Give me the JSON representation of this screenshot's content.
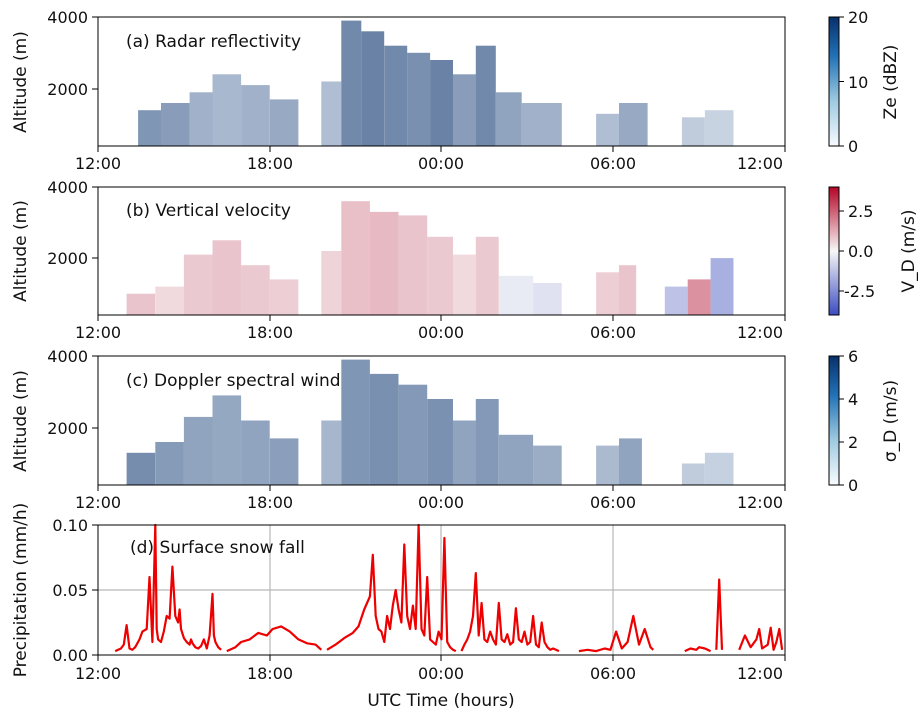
{
  "figure": {
    "x_label": "UTC Time (hours)",
    "x_ticks": [
      "12:00",
      "18:00",
      "00:00",
      "06:00",
      "12:00"
    ],
    "y_label_altitude": "Altitude (m)"
  },
  "chart_data": [
    {
      "type": "heatmap",
      "title": "(a) Radar reflectivity",
      "ylabel": "Altitude (m)",
      "xlim": [
        0,
        24
      ],
      "ylim": [
        400,
        4000
      ],
      "yticks": [
        "2000",
        "4000"
      ],
      "colorbar": {
        "label": "Ze (dBZ)",
        "ticks": [
          "0",
          "10",
          "20"
        ],
        "range": [
          0,
          20
        ],
        "colormap": "white-to-blue",
        "colors": [
          "#f7fbff",
          "#08306b"
        ]
      },
      "cells": [
        {
          "t0": 1.4,
          "t1": 2.2,
          "top": 1400,
          "v": 12
        },
        {
          "t0": 2.2,
          "t1": 3.2,
          "top": 1600,
          "v": 11
        },
        {
          "t0": 3.2,
          "t1": 4.0,
          "top": 1900,
          "v": 8
        },
        {
          "t0": 4.0,
          "t1": 5.0,
          "top": 2400,
          "v": 7
        },
        {
          "t0": 5.0,
          "t1": 6.0,
          "top": 2100,
          "v": 8
        },
        {
          "t0": 6.0,
          "t1": 7.0,
          "top": 1700,
          "v": 9
        },
        {
          "t0": 7.8,
          "t1": 8.5,
          "top": 2200,
          "v": 6
        },
        {
          "t0": 8.5,
          "t1": 9.2,
          "top": 3900,
          "v": 14
        },
        {
          "t0": 9.2,
          "t1": 10.0,
          "top": 3600,
          "v": 15
        },
        {
          "t0": 10.0,
          "t1": 10.8,
          "top": 3200,
          "v": 14
        },
        {
          "t0": 10.8,
          "t1": 11.6,
          "top": 3000,
          "v": 13
        },
        {
          "t0": 11.6,
          "t1": 12.4,
          "top": 2800,
          "v": 15
        },
        {
          "t0": 12.4,
          "t1": 13.2,
          "top": 2400,
          "v": 11
        },
        {
          "t0": 13.2,
          "t1": 13.9,
          "top": 3200,
          "v": 14
        },
        {
          "t0": 13.9,
          "t1": 14.8,
          "top": 1900,
          "v": 10
        },
        {
          "t0": 14.8,
          "t1": 16.2,
          "top": 1600,
          "v": 8
        },
        {
          "t0": 17.4,
          "t1": 18.2,
          "top": 1300,
          "v": 6
        },
        {
          "t0": 18.2,
          "t1": 19.2,
          "top": 1600,
          "v": 9
        },
        {
          "t0": 20.4,
          "t1": 21.2,
          "top": 1200,
          "v": 4
        },
        {
          "t0": 21.2,
          "t1": 22.2,
          "top": 1400,
          "v": 3
        }
      ]
    },
    {
      "type": "heatmap",
      "title": "(b) Vertical velocity",
      "ylabel": "Altitude (m)",
      "xlim": [
        0,
        24
      ],
      "ylim": [
        400,
        4000
      ],
      "yticks": [
        "2000",
        "4000"
      ],
      "colorbar": {
        "label": "V_D (m/s)",
        "ticks": [
          "2.5",
          "0.0",
          "-2.5"
        ],
        "range": [
          -4,
          4
        ],
        "colormap": "blue-white-red",
        "colors": [
          "#3b4cc0",
          "#f7f7f7",
          "#b40426"
        ]
      },
      "cells": [
        {
          "t0": 1.0,
          "t1": 2.0,
          "top": 1000,
          "v": 1.0
        },
        {
          "t0": 2.0,
          "t1": 3.0,
          "top": 1200,
          "v": 0.6
        },
        {
          "t0": 3.0,
          "t1": 4.0,
          "top": 2100,
          "v": 0.9
        },
        {
          "t0": 4.0,
          "t1": 5.0,
          "top": 2500,
          "v": 1.0
        },
        {
          "t0": 5.0,
          "t1": 6.0,
          "top": 1800,
          "v": 0.9
        },
        {
          "t0": 6.0,
          "t1": 7.0,
          "top": 1400,
          "v": 0.8
        },
        {
          "t0": 7.8,
          "t1": 8.5,
          "top": 2200,
          "v": 0.7
        },
        {
          "t0": 8.5,
          "t1": 9.5,
          "top": 3600,
          "v": 1.1
        },
        {
          "t0": 9.5,
          "t1": 10.5,
          "top": 3300,
          "v": 1.2
        },
        {
          "t0": 10.5,
          "t1": 11.5,
          "top": 3200,
          "v": 1.0
        },
        {
          "t0": 11.5,
          "t1": 12.4,
          "top": 2600,
          "v": 0.9
        },
        {
          "t0": 12.4,
          "t1": 13.2,
          "top": 2100,
          "v": 0.6
        },
        {
          "t0": 13.2,
          "t1": 14.0,
          "top": 2600,
          "v": 0.9
        },
        {
          "t0": 14.0,
          "t1": 15.2,
          "top": 1500,
          "v": -0.4
        },
        {
          "t0": 15.2,
          "t1": 16.2,
          "top": 1300,
          "v": -0.6
        },
        {
          "t0": 17.4,
          "t1": 18.2,
          "top": 1600,
          "v": 0.8
        },
        {
          "t0": 18.2,
          "t1": 18.8,
          "top": 1800,
          "v": 1.0
        },
        {
          "t0": 19.8,
          "t1": 20.6,
          "top": 1200,
          "v": -1.5
        },
        {
          "t0": 20.6,
          "t1": 21.4,
          "top": 1400,
          "v": 2.0
        },
        {
          "t0": 21.4,
          "t1": 22.2,
          "top": 2000,
          "v": -2.0
        }
      ]
    },
    {
      "type": "heatmap",
      "title": "(c) Doppler spectral wind",
      "ylabel": "Altitude (m)",
      "xlim": [
        0,
        24
      ],
      "ylim": [
        400,
        4000
      ],
      "yticks": [
        "2000",
        "4000"
      ],
      "colorbar": {
        "label": "σ_D (m/s)",
        "ticks": [
          "0",
          "2",
          "4",
          "6"
        ],
        "range": [
          0,
          6
        ],
        "colormap": "white-to-blue",
        "colors": [
          "#f7fbff",
          "#08306b"
        ]
      },
      "cells": [
        {
          "t0": 1.0,
          "t1": 2.0,
          "top": 1300,
          "v": 4.0
        },
        {
          "t0": 2.0,
          "t1": 3.0,
          "top": 1600,
          "v": 3.4
        },
        {
          "t0": 3.0,
          "t1": 4.0,
          "top": 2300,
          "v": 3.0
        },
        {
          "t0": 4.0,
          "t1": 5.0,
          "top": 2900,
          "v": 2.8
        },
        {
          "t0": 5.0,
          "t1": 6.0,
          "top": 2200,
          "v": 3.0
        },
        {
          "t0": 6.0,
          "t1": 7.0,
          "top": 1700,
          "v": 3.2
        },
        {
          "t0": 7.8,
          "t1": 8.5,
          "top": 2200,
          "v": 2.2
        },
        {
          "t0": 8.5,
          "t1": 9.5,
          "top": 3900,
          "v": 3.6
        },
        {
          "t0": 9.5,
          "t1": 10.5,
          "top": 3500,
          "v": 3.9
        },
        {
          "t0": 10.5,
          "t1": 11.5,
          "top": 3200,
          "v": 3.5
        },
        {
          "t0": 11.5,
          "t1": 12.4,
          "top": 2800,
          "v": 3.8
        },
        {
          "t0": 12.4,
          "t1": 13.2,
          "top": 2200,
          "v": 3.0
        },
        {
          "t0": 13.2,
          "t1": 14.0,
          "top": 2800,
          "v": 3.5
        },
        {
          "t0": 14.0,
          "t1": 15.2,
          "top": 1800,
          "v": 3.0
        },
        {
          "t0": 15.2,
          "t1": 16.2,
          "top": 1500,
          "v": 2.6
        },
        {
          "t0": 17.4,
          "t1": 18.2,
          "top": 1500,
          "v": 2.0
        },
        {
          "t0": 18.2,
          "t1": 19.0,
          "top": 1700,
          "v": 3.0
        },
        {
          "t0": 20.4,
          "t1": 21.2,
          "top": 1000,
          "v": 1.2
        },
        {
          "t0": 21.2,
          "t1": 22.2,
          "top": 1300,
          "v": 1.0
        }
      ]
    },
    {
      "type": "line",
      "title": "(d) Surface snow fall",
      "xlabel": "UTC Time (hours)",
      "ylabel": "Precipitation (mm/h)",
      "xlim": [
        0,
        24
      ],
      "ylim": [
        0,
        0.1
      ],
      "yticks": [
        "0.00",
        "0.05",
        "0.10"
      ],
      "grid": true,
      "color": "#ee0000",
      "series": [
        {
          "segments": [
            {
              "x": [
                0.6,
                0.8,
                0.9,
                1.0,
                1.1,
                1.2,
                1.3,
                1.45,
                1.55,
                1.7,
                1.8,
                1.9,
                2.0,
                2.05,
                2.1,
                2.2,
                2.3,
                2.4,
                2.5,
                2.6,
                2.7,
                2.8,
                2.85,
                2.9,
                3.0,
                3.1,
                3.2,
                3.25,
                3.3,
                3.4,
                3.5,
                3.6,
                3.7,
                3.8,
                3.9,
                4.0,
                4.05,
                4.1,
                4.2,
                4.3
              ],
              "y": [
                0.003,
                0.005,
                0.008,
                0.023,
                0.005,
                0.004,
                0.006,
                0.012,
                0.018,
                0.02,
                0.06,
                0.01,
                0.15,
                0.02,
                0.012,
                0.01,
                0.018,
                0.03,
                0.028,
                0.068,
                0.03,
                0.025,
                0.035,
                0.02,
                0.013,
                0.01,
                0.008,
                0.012,
                0.009,
                0.006,
                0.005,
                0.007,
                0.012,
                0.005,
                0.015,
                0.047,
                0.015,
                0.01,
                0.006,
                0.004
              ]
            },
            {
              "x": [
                4.5,
                4.8,
                5.0,
                5.3,
                5.6,
                5.9,
                6.1,
                6.4,
                6.7,
                7.0,
                7.3,
                7.6,
                7.8
              ],
              "y": [
                0.003,
                0.006,
                0.01,
                0.012,
                0.017,
                0.015,
                0.02,
                0.022,
                0.018,
                0.012,
                0.009,
                0.008,
                0.004
              ]
            },
            {
              "x": [
                8.0,
                8.3,
                8.6,
                8.9,
                9.1,
                9.3,
                9.5,
                9.6,
                9.7,
                9.8,
                9.9,
                10.0,
                10.1,
                10.2,
                10.3,
                10.4,
                10.5,
                10.6,
                10.7,
                10.8,
                10.9,
                11.0,
                11.1,
                11.2,
                11.3,
                11.4,
                11.5,
                11.6,
                11.7,
                11.8,
                11.9,
                12.0,
                12.1,
                12.2,
                12.3,
                12.4,
                12.5
              ],
              "y": [
                0.004,
                0.008,
                0.013,
                0.017,
                0.022,
                0.035,
                0.045,
                0.077,
                0.03,
                0.02,
                0.018,
                0.01,
                0.03,
                0.02,
                0.038,
                0.05,
                0.035,
                0.025,
                0.085,
                0.03,
                0.02,
                0.038,
                0.02,
                0.1,
                0.02,
                0.015,
                0.06,
                0.012,
                0.01,
                0.008,
                0.018,
                0.012,
                0.09,
                0.01,
                0.006,
                0.004,
                0.003
              ]
            },
            {
              "x": [
                12.7,
                12.8,
                12.9,
                13.0,
                13.1,
                13.2,
                13.3,
                13.4,
                13.5,
                13.6,
                13.7,
                13.8,
                13.9,
                14.0,
                14.1,
                14.2,
                14.3,
                14.4,
                14.5,
                14.6,
                14.7,
                14.8,
                14.9,
                15.0,
                15.1,
                15.2,
                15.3,
                15.4,
                15.5,
                15.6,
                15.7,
                15.8,
                15.9,
                16.0,
                16.1
              ],
              "y": [
                0.003,
                0.008,
                0.012,
                0.018,
                0.03,
                0.063,
                0.015,
                0.04,
                0.012,
                0.01,
                0.018,
                0.012,
                0.008,
                0.04,
                0.012,
                0.01,
                0.016,
                0.008,
                0.01,
                0.036,
                0.012,
                0.01,
                0.018,
                0.008,
                0.01,
                0.03,
                0.008,
                0.006,
                0.025,
                0.01,
                0.006,
                0.004,
                0.005,
                0.004,
                0.003
              ]
            },
            {
              "x": [
                16.8,
                17.1,
                17.4,
                17.7,
                17.9,
                18.1,
                18.3,
                18.5,
                18.7,
                18.9,
                19.1,
                19.3,
                19.4
              ],
              "y": [
                0.003,
                0.004,
                0.003,
                0.005,
                0.004,
                0.018,
                0.005,
                0.01,
                0.03,
                0.008,
                0.02,
                0.006,
                0.004
              ]
            },
            {
              "x": [
                20.5,
                20.7,
                20.9,
                21.0,
                21.2,
                21.4
              ],
              "y": [
                0.003,
                0.005,
                0.004,
                0.006,
                0.005,
                0.003
              ]
            },
            {
              "x": [
                21.6,
                21.7,
                21.8
              ],
              "y": [
                0.004,
                0.058,
                0.004
              ]
            },
            {
              "x": [
                22.4,
                22.6,
                22.8,
                23.0,
                23.1,
                23.2,
                23.4,
                23.5,
                23.6,
                23.7,
                23.8,
                23.9
              ],
              "y": [
                0.004,
                0.015,
                0.006,
                0.012,
                0.02,
                0.005,
                0.008,
                0.021,
                0.004,
                0.01,
                0.02,
                0.004
              ]
            }
          ]
        }
      ]
    }
  ]
}
